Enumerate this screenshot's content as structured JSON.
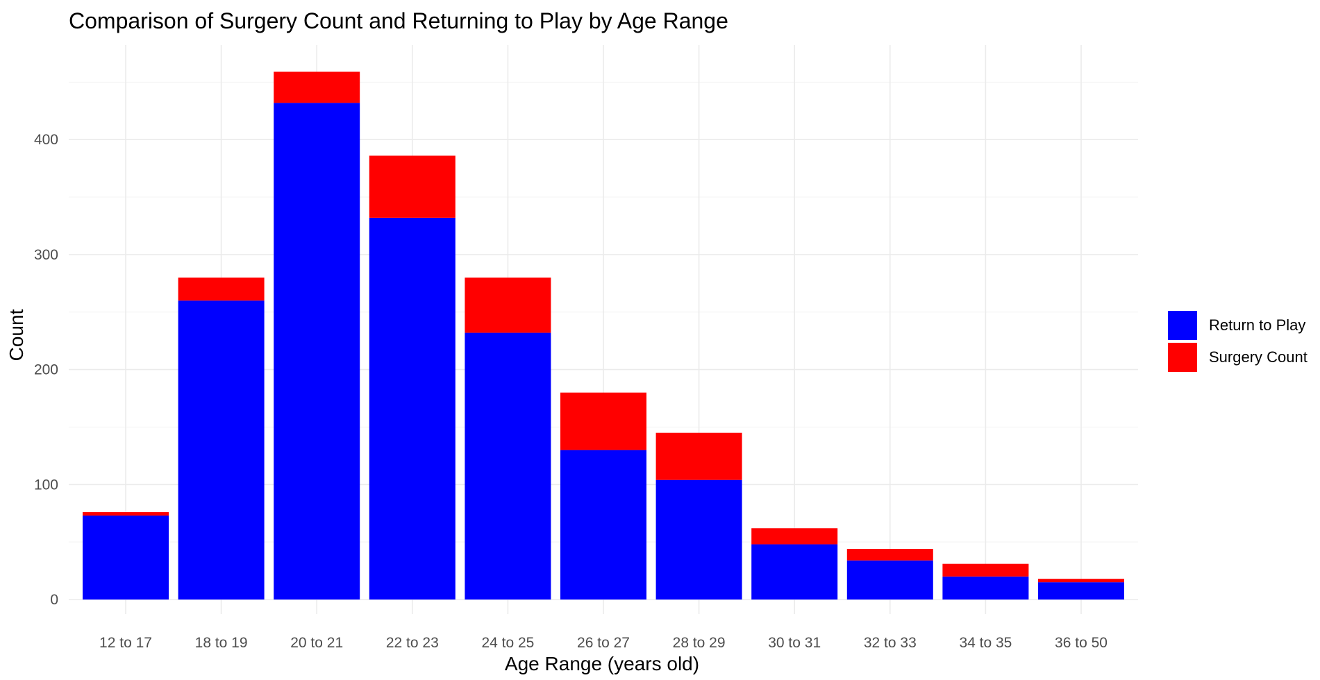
{
  "chart_data": {
    "type": "bar",
    "stacked": true,
    "title": "Comparison of Surgery Count and Returning to Play by Age Range",
    "xlabel": "Age Range (years old)",
    "ylabel": "Count",
    "ylim": [
      0,
      480
    ],
    "yticks": [
      0,
      100,
      200,
      300,
      400
    ],
    "ytick_labels": [
      "0",
      "100",
      "200",
      "300",
      "400"
    ],
    "grid": true,
    "legend_position": "right",
    "categories": [
      "12 to 17",
      "18 to 19",
      "20 to 21",
      "22 to 23",
      "24 to 25",
      "26 to 27",
      "28 to 29",
      "30 to 31",
      "32 to 33",
      "34 to 35",
      "36 to 50"
    ],
    "series": [
      {
        "name": "Return to Play",
        "color": "#0000ff",
        "values": [
          73,
          260,
          432,
          332,
          232,
          130,
          104,
          48,
          34,
          20,
          15
        ]
      },
      {
        "name": "Surgery Count",
        "color": "#ff0000",
        "values": [
          3,
          20,
          27,
          54,
          48,
          50,
          41,
          14,
          10,
          11,
          3
        ]
      }
    ]
  }
}
